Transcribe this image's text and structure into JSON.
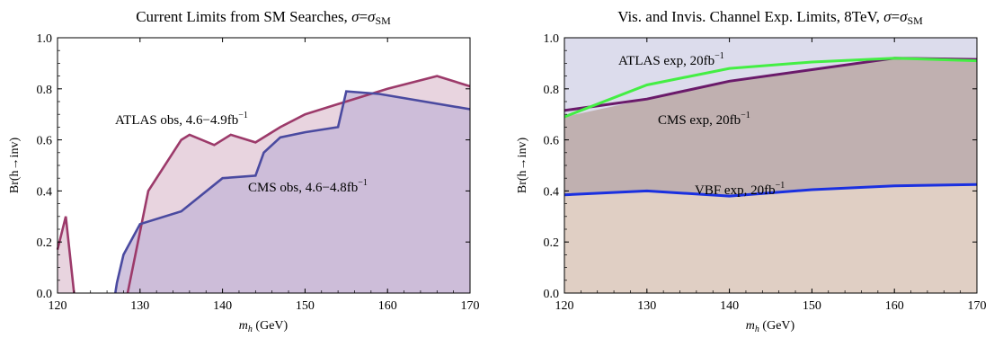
{
  "chart_data": [
    {
      "type": "area",
      "title": "Current Limits from SM Searches, σ=σ_SM",
      "title_parts": {
        "main": "Current Limits from SM Searches, ",
        "sigma": "σ",
        "eq": "=",
        "sigma2": "σ",
        "sub": "SM"
      },
      "xlabel": {
        "var": "m",
        "sub": "h",
        "unit": " (GeV)"
      },
      "ylabel": "Br(h→inv)",
      "xlim": [
        120,
        170
      ],
      "ylim": [
        0,
        1.0
      ],
      "xticks": [
        "120",
        "130",
        "140",
        "150",
        "160",
        "170"
      ],
      "yticks": [
        "0.0",
        "0.2",
        "0.4",
        "0.6",
        "0.8",
        "1.0"
      ],
      "grid": false,
      "series": [
        {
          "name": "ATLAS obs, 4.6−4.9fb−1",
          "label_parts": {
            "main": "ATLAS obs, 4.6−4.9fb",
            "sup": "−1"
          },
          "color": "#9c3a6a",
          "fill": "#e8d4df",
          "segments": [
            [
              [
                120,
                0.17
              ],
              [
                121,
                0.3
              ],
              [
                122,
                0.0
              ]
            ],
            [
              [
                128.5,
                0.0
              ],
              [
                131,
                0.4
              ],
              [
                135,
                0.6
              ],
              [
                136,
                0.62
              ],
              [
                139,
                0.58
              ],
              [
                141,
                0.62
              ],
              [
                144,
                0.59
              ],
              [
                147,
                0.65
              ],
              [
                150,
                0.7
              ],
              [
                154,
                0.74
              ],
              [
                160,
                0.8
              ],
              [
                166,
                0.85
              ],
              [
                170,
                0.81
              ]
            ]
          ]
        },
        {
          "name": "CMS obs, 4.6−4.8fb−1",
          "label_parts": {
            "main": "CMS obs, 4.6−4.8fb",
            "sup": "−1"
          },
          "color": "#4a4aa0",
          "fill": "#c8b8d8",
          "segments": [
            [
              [
                127,
                0.0
              ],
              [
                127.2,
                0.04
              ],
              [
                128,
                0.15
              ],
              [
                130,
                0.27
              ],
              [
                135,
                0.32
              ],
              [
                140,
                0.45
              ],
              [
                144,
                0.46
              ],
              [
                145,
                0.55
              ],
              [
                147,
                0.61
              ],
              [
                150,
                0.63
              ],
              [
                154,
                0.65
              ],
              [
                155,
                0.79
              ],
              [
                159,
                0.78
              ],
              [
                170,
                0.72
              ]
            ]
          ]
        }
      ]
    },
    {
      "type": "area",
      "title": "Vis. and Invis. Channel Exp. Limits, 8TeV, σ=σ_SM",
      "title_parts": {
        "main": "Vis. and Invis. Channel Exp. Limits, 8TeV, ",
        "sigma": "σ",
        "eq": "=",
        "sigma2": "σ",
        "sub": "SM"
      },
      "xlabel": {
        "var": "m",
        "sub": "h",
        "unit": " (GeV)"
      },
      "ylabel": "Br(h→inv)",
      "xlim": [
        120,
        170
      ],
      "ylim": [
        0,
        1.0
      ],
      "xticks": [
        "120",
        "130",
        "140",
        "150",
        "160",
        "170"
      ],
      "yticks": [
        "0.0",
        "0.2",
        "0.4",
        "0.6",
        "0.8",
        "1.0"
      ],
      "grid": false,
      "series": [
        {
          "name": "ATLAS exp, 20fb−1",
          "label_parts": {
            "main": "ATLAS exp, 20fb",
            "sup": "−1"
          },
          "color": "#44ee44",
          "fill": "#dcdcec",
          "points": [
            [
              120,
              0.69
            ],
            [
              130,
              0.815
            ],
            [
              140,
              0.88
            ],
            [
              150,
              0.905
            ],
            [
              160,
              0.92
            ],
            [
              170,
              0.91
            ]
          ]
        },
        {
          "name": "CMS exp, 20fb−1",
          "label_parts": {
            "main": "CMS exp, 20fb",
            "sup": "−1"
          },
          "color": "#6a1a6a",
          "fill": "#c0b0b0",
          "points": [
            [
              120,
              0.715
            ],
            [
              130,
              0.76
            ],
            [
              140,
              0.83
            ],
            [
              150,
              0.875
            ],
            [
              160,
              0.92
            ],
            [
              170,
              0.915
            ]
          ]
        },
        {
          "name": "VBF exp, 20fb−1",
          "label_parts": {
            "main": "VBF exp, 20fb",
            "sup": "−1"
          },
          "color": "#1a30e0",
          "fill": "#e0cfc4",
          "points": [
            [
              120,
              0.385
            ],
            [
              130,
              0.4
            ],
            [
              140,
              0.38
            ],
            [
              150,
              0.405
            ],
            [
              160,
              0.42
            ],
            [
              170,
              0.425
            ]
          ]
        }
      ]
    }
  ]
}
